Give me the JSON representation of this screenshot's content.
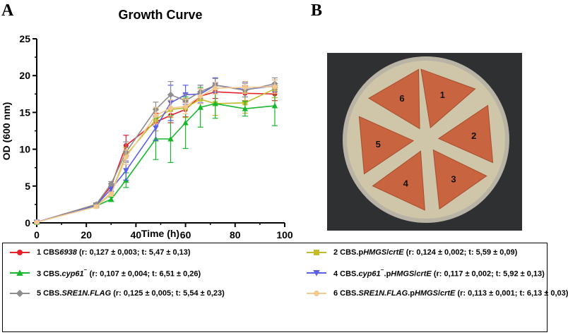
{
  "panels": {
    "a": "A",
    "b": "B"
  },
  "chart_data": {
    "type": "line",
    "title": "Growth Curve",
    "xlabel": "Time (h)",
    "ylabel": "OD (600 nm)",
    "xlim": [
      0,
      100
    ],
    "ylim": [
      0,
      25
    ],
    "xticks": [
      0,
      20,
      40,
      60,
      80,
      100
    ],
    "yticks": [
      0,
      5,
      10,
      15,
      20,
      25
    ],
    "grid": false,
    "x": [
      0,
      24,
      30,
      36,
      48,
      54,
      60,
      66,
      72,
      84,
      96
    ],
    "series": [
      {
        "name": "1 CBS6938",
        "label_parts": [
          {
            "t": "1 CBS"
          },
          {
            "t": "6938",
            "i": true
          },
          {
            "t": " (r: 0,127 ± 0,003; t: 5,47 ± 0,13)"
          }
        ],
        "color": "#e8202a",
        "marker": "circle",
        "values": [
          0.1,
          2.5,
          5.0,
          10.5,
          13.7,
          14.6,
          15.4,
          17.2,
          17.8,
          17.6,
          17.5
        ],
        "errors": [
          0.1,
          0.2,
          0.3,
          1.4,
          1.2,
          1.0,
          1.0,
          1.0,
          0.9,
          1.0,
          0.9
        ]
      },
      {
        "name": "2 CBS.pHMGS/crtE",
        "label_parts": [
          {
            "t": "2 CBS.p"
          },
          {
            "t": "HMGS",
            "i": true
          },
          {
            "t": "/"
          },
          {
            "t": "crtE",
            "i": true
          },
          {
            "t": " (r: 0,124 ± 0,002; t: 5,59 ± 0,09)"
          }
        ],
        "color": "#c3bb2a",
        "marker": "square",
        "values": [
          0.1,
          2.3,
          4.0,
          9.2,
          14.0,
          15.4,
          15.6,
          16.8,
          16.2,
          16.3,
          18.2
        ],
        "errors": [
          0.1,
          0.2,
          0.3,
          1.0,
          1.5,
          1.1,
          1.3,
          1.4,
          1.6,
          1.4,
          1.2
        ]
      },
      {
        "name": "3 CBS.cyp61-",
        "label_parts": [
          {
            "t": "3 CBS."
          },
          {
            "t": "cyp61",
            "i": true
          },
          {
            "t": "⁻",
            "sup": true
          },
          {
            "t": " (r: 0,107 ± 0,004; t: 6,51 ± 0,26)"
          }
        ],
        "color": "#17b82c",
        "marker": "triangle-up",
        "values": [
          0.1,
          2.3,
          3.2,
          5.8,
          11.4,
          11.4,
          13.6,
          15.7,
          16.2,
          15.5,
          15.9
        ],
        "errors": [
          0.1,
          0.2,
          0.3,
          1.0,
          2.8,
          3.2,
          3.5,
          2.7,
          2.0,
          1.0,
          2.7
        ]
      },
      {
        "name": "4 CBS.cyp61-.pHMGS/crtE",
        "label_parts": [
          {
            "t": "4 CBS."
          },
          {
            "t": "cyp61",
            "i": true
          },
          {
            "t": "⁻",
            "sup": true
          },
          {
            "t": ".p"
          },
          {
            "t": "HMGS",
            "i": true
          },
          {
            "t": "/"
          },
          {
            "t": "crtE",
            "i": true
          },
          {
            "t": " (r: 0,117 ± 0,002; t: 5,92 ± 0,13)"
          }
        ],
        "color": "#5b5fe8",
        "marker": "triangle-down",
        "values": [
          0.1,
          2.4,
          4.6,
          7.1,
          12.9,
          16.3,
          17.4,
          17.5,
          18.7,
          18.1,
          18.6
        ],
        "errors": [
          0.1,
          0.2,
          0.3,
          1.3,
          1.7,
          2.4,
          1.3,
          1.2,
          1.0,
          1.0,
          0.8
        ]
      },
      {
        "name": "5 CBS.SRE1N.FLAG",
        "label_parts": [
          {
            "t": "5 CBS."
          },
          {
            "t": "SRE1N.FLAG",
            "i": true
          },
          {
            "t": " (r: 0,125 ± 0,005; t: 5,54 ± 0,23)"
          }
        ],
        "color": "#8e8e8e",
        "marker": "diamond",
        "values": [
          0.1,
          2.5,
          5.3,
          9.6,
          15.4,
          17.4,
          16.6,
          17.8,
          18.7,
          18.0,
          18.9
        ],
        "errors": [
          0.1,
          0.2,
          0.3,
          1.4,
          1.0,
          1.8,
          0.9,
          0.9,
          0.9,
          0.9,
          0.8
        ]
      },
      {
        "name": "6 CBS.SRE1N.FLAG.pHMGS/crtE",
        "label_parts": [
          {
            "t": "6 CBS."
          },
          {
            "t": "SRE1N.FLAG",
            "i": true
          },
          {
            "t": ".p"
          },
          {
            "t": "HMGS",
            "i": true
          },
          {
            "t": "/"
          },
          {
            "t": "crtE",
            "i": true
          },
          {
            "t": " (r: 0,113 ± 0,001; t: 6,13 ± 0,03)"
          }
        ],
        "color": "#f5c890",
        "marker": "circle",
        "values": [
          0.1,
          2.2,
          3.9,
          8.9,
          14.6,
          15.6,
          15.8,
          17.2,
          18.3,
          18.4,
          18.5
        ],
        "errors": [
          0.1,
          0.2,
          0.3,
          1.0,
          1.1,
          1.1,
          1.0,
          1.0,
          0.8,
          0.8,
          0.9
        ]
      }
    ]
  },
  "plate": {
    "background_color": "#2e3032",
    "agar_color": "#cfc5a8",
    "colony_color": "#c8643f",
    "sector_labels": [
      "1",
      "2",
      "3",
      "4",
      "5",
      "6"
    ]
  }
}
